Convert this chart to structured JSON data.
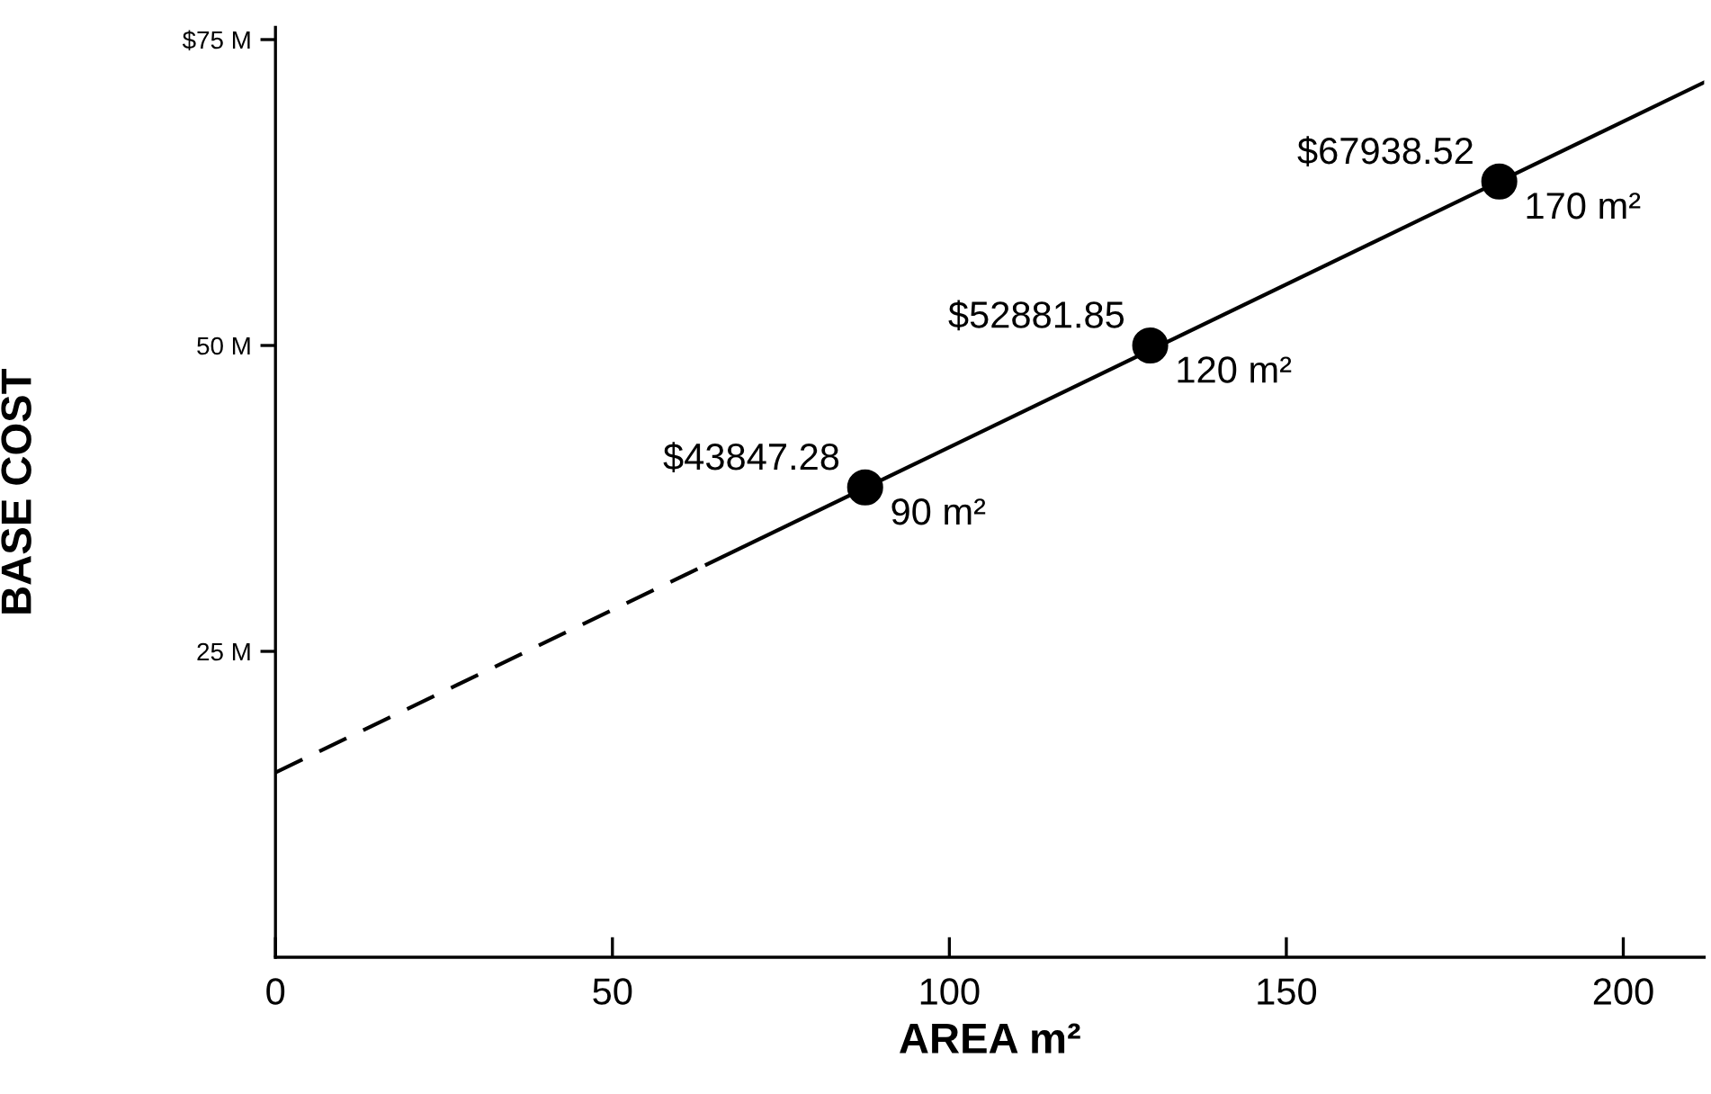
{
  "chart_data": {
    "type": "scatter",
    "xlabel": "AREA m²",
    "ylabel": "BASE COST",
    "xlim": [
      0,
      212
    ],
    "ylim": [
      0,
      76
    ],
    "xticks": [
      0,
      50,
      100,
      150,
      200
    ],
    "yticks": [
      {
        "value": 25,
        "label": "25 M"
      },
      {
        "value": 50,
        "label": "50 M"
      },
      {
        "value": 75,
        "label": "$75 M"
      }
    ],
    "grid": false,
    "legend": false,
    "series": [
      {
        "type": "line",
        "line_style": "dashed",
        "marker": "none",
        "color": "#000000",
        "x": [
          0,
          64
        ],
        "values": [
          15.1,
          32.1
        ]
      },
      {
        "type": "line",
        "line_style": "solid",
        "marker": "none",
        "color": "#000000",
        "x": [
          64,
          212
        ],
        "values": [
          32.1,
          71.5
        ]
      },
      {
        "marker": "circle",
        "color": "#000000",
        "x": [
          87.5,
          129.8,
          181.6
        ],
        "values": [
          38.4,
          50,
          63.4
        ]
      }
    ],
    "annotations": [
      {
        "text": "$43847.28",
        "x": 87.5,
        "y": 38.4
      },
      {
        "text": "90 m²",
        "x": 87.5,
        "y": 38.4
      },
      {
        "text": "$52881.85",
        "x": 129.8,
        "y": 50
      },
      {
        "text": "120 m²",
        "x": 129.8,
        "y": 50
      },
      {
        "text": "$67938.52",
        "x": 181.6,
        "y": 63.4
      },
      {
        "text": "170 m²",
        "x": 181.6,
        "y": 63.4
      }
    ]
  }
}
